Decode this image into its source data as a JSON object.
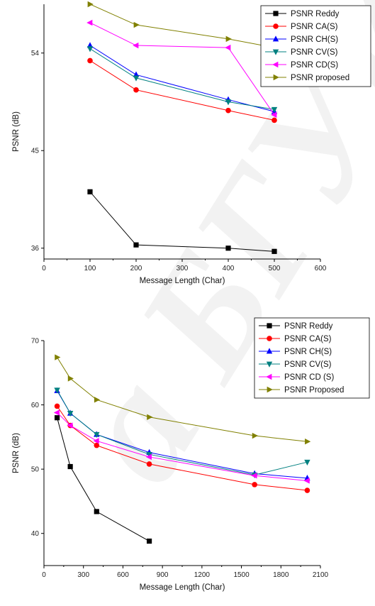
{
  "watermark": "а БГУИР",
  "chart_data": [
    {
      "type": "line",
      "title": "",
      "xlabel": "Message Length (Char)",
      "ylabel": "PSNR (dB)",
      "xlim": [
        0,
        600
      ],
      "ylim": [
        35,
        58.5
      ],
      "xticks": [
        0,
        100,
        200,
        300,
        400,
        500,
        600
      ],
      "yticks": [
        36,
        45,
        54
      ],
      "legend_position": "top-right",
      "series": [
        {
          "name": "PSNR Reddy",
          "color": "#000000",
          "marker": "square",
          "x": [
            100,
            200,
            400,
            500
          ],
          "y": [
            41.2,
            36.3,
            36.0,
            35.7
          ]
        },
        {
          "name": "PSNR CA(S)",
          "color": "#ff0000",
          "marker": "circle",
          "x": [
            100,
            200,
            400,
            500
          ],
          "y": [
            53.3,
            50.6,
            48.7,
            47.8
          ]
        },
        {
          "name": "PSNR CH(S)",
          "color": "#0000ff",
          "marker": "triangle-up",
          "x": [
            100,
            200,
            400,
            500
          ],
          "y": [
            54.7,
            52.0,
            49.7,
            48.6
          ]
        },
        {
          "name": "PSNR CV(S)",
          "color": "#008080",
          "marker": "triangle-down",
          "x": [
            100,
            200,
            400,
            500
          ],
          "y": [
            54.4,
            51.7,
            49.5,
            48.8
          ]
        },
        {
          "name": "PSNR  CD(S)",
          "color": "#ff00ff",
          "marker": "triangle-left",
          "x": [
            100,
            200,
            400,
            500
          ],
          "y": [
            56.8,
            54.7,
            54.5,
            48.3
          ]
        },
        {
          "name": "PSNR proposed",
          "color": "#808000",
          "marker": "triangle-right",
          "x": [
            100,
            200,
            400,
            500
          ],
          "y": [
            58.5,
            56.6,
            55.3,
            54.5
          ]
        }
      ]
    },
    {
      "type": "line",
      "title": "",
      "xlabel": "Message Length (Char)",
      "ylabel": "PSNR (dB)",
      "xlim": [
        0,
        2100
      ],
      "ylim": [
        35,
        70
      ],
      "xticks": [
        0,
        300,
        600,
        900,
        1200,
        1500,
        1800,
        2100
      ],
      "yticks": [
        40,
        50,
        60,
        70
      ],
      "legend_position": "top-right",
      "series": [
        {
          "name": "PSNR Reddy",
          "color": "#000000",
          "marker": "square",
          "x": [
            100,
            200,
            400,
            800
          ],
          "y": [
            58.0,
            50.4,
            43.4,
            38.8
          ]
        },
        {
          "name": "PSNR CA(S)",
          "color": "#ff0000",
          "marker": "circle",
          "x": [
            100,
            200,
            400,
            800,
            1600,
            2000
          ],
          "y": [
            59.8,
            56.8,
            53.7,
            50.8,
            47.6,
            46.7
          ]
        },
        {
          "name": "PSNR CH(S)",
          "color": "#0000ff",
          "marker": "triangle-up",
          "x": [
            100,
            200,
            400,
            800,
            1600,
            2000
          ],
          "y": [
            62.2,
            58.7,
            55.4,
            52.6,
            49.3,
            48.6
          ]
        },
        {
          "name": "PSNR CV(S)",
          "color": "#008080",
          "marker": "triangle-down",
          "x": [
            100,
            200,
            400,
            800,
            1600,
            2000
          ],
          "y": [
            62.3,
            58.7,
            55.4,
            52.3,
            49.1,
            51.1
          ]
        },
        {
          "name": "PSNR CD (S)",
          "color": "#ff00ff",
          "marker": "triangle-left",
          "x": [
            100,
            200,
            400,
            800,
            1600,
            2000
          ],
          "y": [
            58.8,
            56.8,
            54.4,
            51.9,
            49.0,
            48.2
          ]
        },
        {
          "name": "PSNR Proposed",
          "color": "#808000",
          "marker": "triangle-right",
          "x": [
            100,
            200,
            400,
            800,
            1600,
            2000
          ],
          "y": [
            67.4,
            64.1,
            60.8,
            58.1,
            55.2,
            54.3
          ]
        }
      ]
    }
  ]
}
